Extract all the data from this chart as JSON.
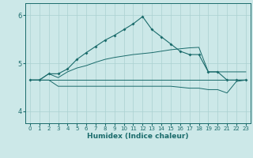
{
  "xlabel": "Humidex (Indice chaleur)",
  "xlim": [
    -0.5,
    23.5
  ],
  "ylim": [
    3.75,
    6.25
  ],
  "yticks": [
    4,
    5,
    6
  ],
  "xticks": [
    0,
    1,
    2,
    3,
    4,
    5,
    6,
    7,
    8,
    9,
    10,
    11,
    12,
    13,
    14,
    15,
    16,
    17,
    18,
    19,
    20,
    21,
    22,
    23
  ],
  "bg_color": "#cce8e8",
  "grid_color": "#aad0d0",
  "line_color": "#1a6b6b",
  "line1_marked": {
    "x": [
      0,
      1,
      2,
      3,
      4,
      5,
      6,
      7,
      8,
      9,
      10,
      11,
      12,
      13,
      14,
      15,
      16,
      17,
      18,
      19,
      20,
      21,
      22,
      23
    ],
    "y": [
      4.65,
      4.65,
      4.78,
      4.78,
      4.88,
      5.08,
      5.22,
      5.35,
      5.48,
      5.58,
      5.7,
      5.82,
      5.97,
      5.7,
      5.55,
      5.4,
      5.25,
      5.18,
      5.18,
      4.82,
      4.82,
      4.65,
      4.65,
      4.65
    ]
  },
  "line2_flat": {
    "x": [
      0,
      1,
      2,
      3,
      4,
      5,
      6,
      7,
      8,
      9,
      10,
      11,
      12,
      13,
      14,
      15,
      16,
      17,
      18,
      19,
      20,
      21,
      22,
      23
    ],
    "y": [
      4.65,
      4.65,
      4.65,
      4.65,
      4.65,
      4.65,
      4.65,
      4.65,
      4.65,
      4.65,
      4.65,
      4.65,
      4.65,
      4.65,
      4.65,
      4.65,
      4.65,
      4.65,
      4.65,
      4.65,
      4.65,
      4.65,
      4.65,
      4.65
    ]
  },
  "line3_rise": {
    "x": [
      0,
      1,
      2,
      3,
      4,
      5,
      6,
      7,
      8,
      9,
      10,
      11,
      12,
      13,
      14,
      15,
      16,
      17,
      18,
      19,
      20,
      21,
      22,
      23
    ],
    "y": [
      4.65,
      4.65,
      4.78,
      4.7,
      4.82,
      4.9,
      4.95,
      5.02,
      5.08,
      5.12,
      5.15,
      5.18,
      5.2,
      5.22,
      5.25,
      5.28,
      5.3,
      5.32,
      5.33,
      4.82,
      4.82,
      4.82,
      4.82,
      4.82
    ]
  },
  "line4_dip": {
    "x": [
      0,
      1,
      2,
      3,
      4,
      5,
      6,
      7,
      8,
      9,
      10,
      11,
      12,
      13,
      14,
      15,
      16,
      17,
      18,
      19,
      20,
      21,
      22,
      23
    ],
    "y": [
      4.65,
      4.65,
      4.65,
      4.52,
      4.52,
      4.52,
      4.52,
      4.52,
      4.52,
      4.52,
      4.52,
      4.52,
      4.52,
      4.52,
      4.52,
      4.52,
      4.5,
      4.48,
      4.48,
      4.45,
      4.45,
      4.38,
      4.62,
      4.65
    ]
  }
}
